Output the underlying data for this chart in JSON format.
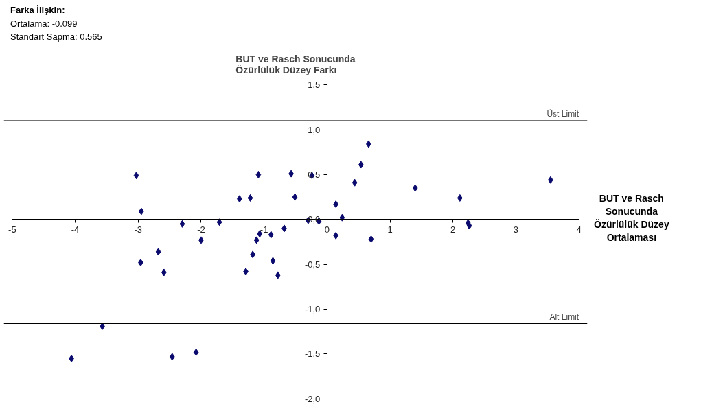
{
  "chart_data": {
    "type": "scatter",
    "title": "BUT ve Rasch Sonucunda\nÖzürlülük Düzey Farkı",
    "xlabel": "BUT ve Rasch\nSonucunda\nÖzürlülük Düzey\nOrtalaması",
    "annotations": [
      "Farka İlişkin:",
      "Ortalama: -0.099",
      "Standart Sapma: 0.565"
    ],
    "series": [
      {
        "color": "#0a0a6e",
        "x": [
          -3.03,
          -2.95,
          -1.39,
          -1.22,
          -1.09,
          -0.57,
          -0.51,
          -0.24,
          0.66,
          0.54,
          0.44,
          0.14,
          0.24,
          1.4,
          2.11,
          2.24,
          2.26,
          3.55,
          0.14,
          0.7,
          -0.3,
          -0.13,
          -2.3,
          -1.71,
          -2.0,
          -1.07,
          -0.89,
          -0.68,
          -1.12,
          -1.18,
          -0.86,
          -1.29,
          -0.78,
          -2.68,
          -2.96,
          -2.59,
          -3.57,
          -4.06,
          -2.46,
          -2.08
        ],
        "values": [
          0.49,
          0.09,
          0.23,
          0.24,
          0.5,
          0.51,
          0.25,
          0.49,
          0.84,
          0.61,
          0.41,
          0.17,
          0.02,
          0.35,
          0.24,
          -0.04,
          -0.07,
          0.44,
          -0.18,
          -0.22,
          -0.01,
          -0.02,
          -0.05,
          -0.03,
          -0.23,
          -0.16,
          -0.17,
          -0.1,
          -0.23,
          -0.39,
          -0.46,
          -0.58,
          -0.62,
          -0.36,
          -0.48,
          -0.59,
          -1.19,
          -1.55,
          -1.53,
          -1.48
        ]
      }
    ],
    "xlim": [
      -5,
      4
    ],
    "ylim": [
      -2,
      1.5
    ],
    "xticks": [
      -5,
      -4,
      -3,
      -2,
      -1,
      0,
      1,
      2,
      3,
      4
    ],
    "yticks": [
      {
        "value": -2,
        "label": "-2,0"
      },
      {
        "value": -1.5,
        "label": "-1,5"
      },
      {
        "value": -1,
        "label": "-1,0"
      },
      {
        "value": -0.5,
        "label": "-0,5"
      },
      {
        "value": 0,
        "label": "0,0"
      },
      {
        "value": 0.5,
        "label": "0,5"
      },
      {
        "value": 1,
        "label": "1,0"
      },
      {
        "value": 1.5,
        "label": "1,5"
      }
    ],
    "ref_lines": [
      {
        "axis": "y",
        "value": 1.1,
        "label": "Üst Limit",
        "color": "#000000"
      },
      {
        "axis": "y",
        "value": -1.16,
        "label": "Alt Limit",
        "color": "#000000"
      }
    ],
    "marker": "diamond"
  }
}
